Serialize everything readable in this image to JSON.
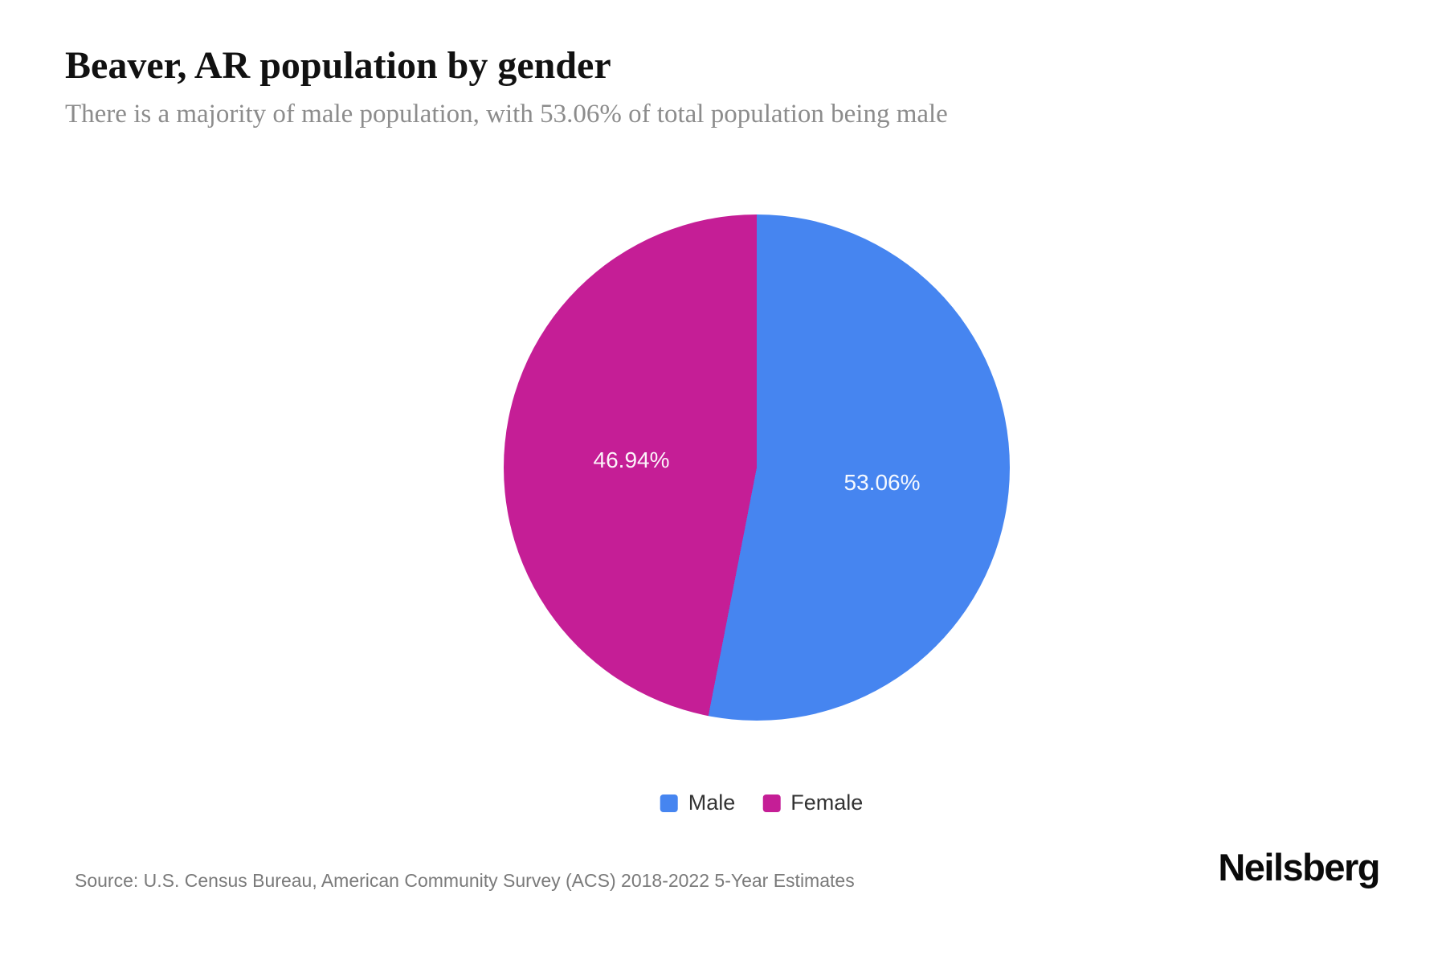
{
  "header": {
    "title": "Beaver, AR population by gender",
    "subtitle": "There is a majority of male population, with 53.06% of total population being male"
  },
  "chart_data": {
    "type": "pie",
    "title": "Beaver, AR population by gender",
    "series": [
      {
        "name": "Male",
        "value": 53.06,
        "percent_label": "53.06%",
        "color": "#4685F0"
      },
      {
        "name": "Female",
        "value": 46.94,
        "percent_label": "46.94%",
        "color": "#C51E96"
      }
    ],
    "start_angle_deg": 0,
    "direction": "clockwise",
    "legend_position": "bottom",
    "data_labels": "inside"
  },
  "legend": {
    "items": [
      {
        "label": "Male",
        "color": "#4685F0"
      },
      {
        "label": "Female",
        "color": "#C51E96"
      }
    ]
  },
  "footer": {
    "source": "Source: U.S. Census Bureau, American Community Survey (ACS) 2018-2022 5-Year Estimates",
    "brand": "Neilsberg"
  }
}
